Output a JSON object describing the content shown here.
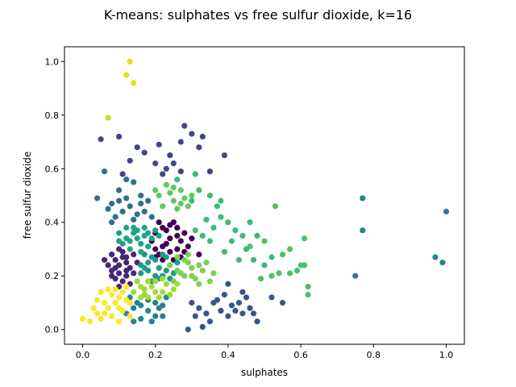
{
  "chart_data": {
    "type": "scatter",
    "title": "K-means: sulphates vs free sulfur dioxide, k=16",
    "xlabel": "sulphates",
    "ylabel": "free sulfur dioxide",
    "xlim": [
      -0.05,
      1.05
    ],
    "ylim": [
      -0.055,
      1.055
    ],
    "xticks": [
      0.0,
      0.2,
      0.4,
      0.6,
      0.8,
      1.0
    ],
    "yticks": [
      0.0,
      0.2,
      0.4,
      0.6,
      0.8,
      1.0
    ],
    "xtick_labels": [
      "0.0",
      "0.2",
      "0.4",
      "0.6",
      "0.8",
      "1.0"
    ],
    "ytick_labels": [
      "0.0",
      "0.2",
      "0.4",
      "0.6",
      "0.8",
      "1.0"
    ],
    "grid": false,
    "legend": "none",
    "clusters": [
      {
        "color": "#440154",
        "points": [
          [
            0.2,
            0.36
          ],
          [
            0.22,
            0.38
          ],
          [
            0.24,
            0.34
          ],
          [
            0.26,
            0.3
          ],
          [
            0.21,
            0.28
          ],
          [
            0.25,
            0.4
          ],
          [
            0.28,
            0.36
          ],
          [
            0.23,
            0.32
          ],
          [
            0.27,
            0.27
          ],
          [
            0.2,
            0.3
          ],
          [
            0.3,
            0.34
          ],
          [
            0.22,
            0.26
          ],
          [
            0.26,
            0.38
          ],
          [
            0.24,
            0.29
          ],
          [
            0.19,
            0.33
          ],
          [
            0.21,
            0.4
          ],
          [
            0.29,
            0.31
          ],
          [
            0.25,
            0.26
          ],
          [
            0.23,
            0.37
          ],
          [
            0.27,
            0.33
          ],
          [
            0.32,
            0.28
          ],
          [
            0.2,
            0.27
          ],
          [
            0.24,
            0.39
          ],
          [
            0.26,
            0.35
          ],
          [
            0.22,
            0.31
          ],
          [
            0.28,
            0.29
          ]
        ]
      },
      {
        "color": "#482677",
        "points": [
          [
            0.08,
            0.22
          ],
          [
            0.1,
            0.24
          ],
          [
            0.12,
            0.2
          ],
          [
            0.09,
            0.26
          ],
          [
            0.11,
            0.18
          ],
          [
            0.13,
            0.23
          ],
          [
            0.08,
            0.28
          ],
          [
            0.1,
            0.16
          ],
          [
            0.12,
            0.27
          ],
          [
            0.14,
            0.21
          ],
          [
            0.07,
            0.24
          ],
          [
            0.09,
            0.19
          ],
          [
            0.11,
            0.29
          ],
          [
            0.13,
            0.17
          ],
          [
            0.15,
            0.25
          ],
          [
            0.08,
            0.2
          ],
          [
            0.1,
            0.3
          ],
          [
            0.12,
            0.22
          ],
          [
            0.14,
            0.28
          ],
          [
            0.06,
            0.26
          ],
          [
            0.1,
            0.21
          ],
          [
            0.12,
            0.25
          ],
          [
            0.09,
            0.23
          ],
          [
            0.11,
            0.27
          ]
        ]
      },
      {
        "color": "#3f4788",
        "points": [
          [
            0.05,
            0.71
          ],
          [
            0.1,
            0.72
          ],
          [
            0.15,
            0.68
          ],
          [
            0.17,
            0.66
          ],
          [
            0.21,
            0.69
          ],
          [
            0.24,
            0.65
          ],
          [
            0.28,
            0.76
          ],
          [
            0.3,
            0.73
          ],
          [
            0.33,
            0.72
          ],
          [
            0.25,
            0.62
          ],
          [
            0.2,
            0.62
          ],
          [
            0.13,
            0.63
          ],
          [
            0.27,
            0.59
          ],
          [
            0.39,
            0.65
          ],
          [
            0.35,
            0.59
          ],
          [
            0.22,
            0.58
          ],
          [
            0.27,
            0.7
          ],
          [
            0.32,
            0.68
          ],
          [
            0.23,
            0.6
          ],
          [
            0.11,
            0.58
          ]
        ]
      },
      {
        "color": "#39558c",
        "points": [
          [
            0.3,
            0.1
          ],
          [
            0.32,
            0.08
          ],
          [
            0.34,
            0.06
          ],
          [
            0.36,
            0.1
          ],
          [
            0.38,
            0.07
          ],
          [
            0.4,
            0.05
          ],
          [
            0.42,
            0.07
          ],
          [
            0.44,
            0.06
          ],
          [
            0.46,
            0.08
          ],
          [
            0.35,
            0.03
          ],
          [
            0.33,
            0.01
          ],
          [
            0.37,
            0.11
          ],
          [
            0.39,
            0.13
          ],
          [
            0.41,
            0.09
          ],
          [
            0.45,
            0.12
          ],
          [
            0.47,
            0.06
          ],
          [
            0.31,
            0.05
          ],
          [
            0.43,
            0.1
          ],
          [
            0.48,
            0.03
          ],
          [
            0.52,
            0.12
          ],
          [
            0.55,
            0.1
          ],
          [
            0.29,
            0.0
          ],
          [
            0.4,
            0.17
          ],
          [
            0.44,
            0.14
          ]
        ]
      },
      {
        "color": "#2d708e",
        "points": [
          [
            0.06,
            0.59
          ],
          [
            0.04,
            0.49
          ],
          [
            0.08,
            0.47
          ],
          [
            0.1,
            0.52
          ],
          [
            0.12,
            0.49
          ],
          [
            0.14,
            0.55
          ],
          [
            0.16,
            0.5
          ],
          [
            0.18,
            0.48
          ],
          [
            0.11,
            0.44
          ],
          [
            0.13,
            0.46
          ],
          [
            0.09,
            0.42
          ],
          [
            0.15,
            0.43
          ],
          [
            0.07,
            0.45
          ],
          [
            0.12,
            0.56
          ],
          [
            0.17,
            0.44
          ],
          [
            0.14,
            0.41
          ],
          [
            0.1,
            0.48
          ],
          [
            0.16,
            0.47
          ],
          [
            0.08,
            0.4
          ],
          [
            0.19,
            0.42
          ]
        ]
      },
      {
        "color": "#25838e",
        "points": [
          [
            0.12,
            0.06
          ],
          [
            0.14,
            0.08
          ],
          [
            0.16,
            0.04
          ],
          [
            0.18,
            0.07
          ],
          [
            0.2,
            0.1
          ],
          [
            0.22,
            0.05
          ],
          [
            0.13,
            0.12
          ],
          [
            0.15,
            0.1
          ],
          [
            0.17,
            0.13
          ],
          [
            0.19,
            0.03
          ],
          [
            0.21,
            0.08
          ],
          [
            0.23,
            0.12
          ],
          [
            0.14,
            0.03
          ],
          [
            0.16,
            0.09
          ],
          [
            0.18,
            0.11
          ],
          [
            0.2,
            0.05
          ],
          [
            0.22,
            0.09
          ],
          [
            0.77,
            0.49
          ],
          [
            1.0,
            0.44
          ],
          [
            0.97,
            0.27
          ],
          [
            0.99,
            0.25
          ],
          [
            0.77,
            0.37
          ],
          [
            0.75,
            0.2
          ]
        ]
      },
      {
        "color": "#20a386",
        "points": [
          [
            0.1,
            0.36
          ],
          [
            0.12,
            0.34
          ],
          [
            0.14,
            0.38
          ],
          [
            0.16,
            0.32
          ],
          [
            0.18,
            0.36
          ],
          [
            0.13,
            0.3
          ],
          [
            0.15,
            0.34
          ],
          [
            0.17,
            0.38
          ],
          [
            0.11,
            0.32
          ],
          [
            0.19,
            0.34
          ],
          [
            0.14,
            0.36
          ],
          [
            0.16,
            0.29
          ],
          [
            0.12,
            0.38
          ],
          [
            0.18,
            0.31
          ],
          [
            0.2,
            0.37
          ],
          [
            0.13,
            0.33
          ],
          [
            0.15,
            0.37
          ],
          [
            0.17,
            0.35
          ],
          [
            0.1,
            0.33
          ],
          [
            0.21,
            0.35
          ]
        ]
      },
      {
        "color": "#1f9a8a",
        "points": [
          [
            0.16,
            0.24
          ],
          [
            0.18,
            0.22
          ],
          [
            0.2,
            0.26
          ],
          [
            0.22,
            0.2
          ],
          [
            0.24,
            0.24
          ],
          [
            0.17,
            0.28
          ],
          [
            0.19,
            0.18
          ],
          [
            0.21,
            0.23
          ],
          [
            0.23,
            0.27
          ],
          [
            0.25,
            0.21
          ],
          [
            0.18,
            0.25
          ],
          [
            0.2,
            0.2
          ],
          [
            0.22,
            0.28
          ],
          [
            0.24,
            0.19
          ],
          [
            0.16,
            0.21
          ],
          [
            0.26,
            0.25
          ],
          [
            0.19,
            0.27
          ],
          [
            0.21,
            0.19
          ],
          [
            0.23,
            0.22
          ],
          [
            0.17,
            0.23
          ]
        ]
      },
      {
        "color": "#3cbb75",
        "points": [
          [
            0.31,
            0.37
          ],
          [
            0.34,
            0.41
          ],
          [
            0.36,
            0.38
          ],
          [
            0.38,
            0.42
          ],
          [
            0.33,
            0.35
          ],
          [
            0.35,
            0.33
          ],
          [
            0.4,
            0.4
          ],
          [
            0.42,
            0.37
          ],
          [
            0.44,
            0.35
          ],
          [
            0.46,
            0.4
          ],
          [
            0.39,
            0.29
          ],
          [
            0.41,
            0.33
          ],
          [
            0.43,
            0.26
          ],
          [
            0.45,
            0.3
          ],
          [
            0.47,
            0.26
          ],
          [
            0.5,
            0.24
          ],
          [
            0.52,
            0.27
          ],
          [
            0.48,
            0.35
          ],
          [
            0.38,
            0.48
          ],
          [
            0.35,
            0.5
          ],
          [
            0.32,
            0.52
          ],
          [
            0.37,
            0.46
          ],
          [
            0.26,
            0.56
          ],
          [
            0.31,
            0.58
          ],
          [
            0.3,
            0.48
          ]
        ]
      },
      {
        "color": "#4ac16d",
        "points": [
          [
            0.53,
            0.46
          ],
          [
            0.57,
            0.3
          ],
          [
            0.6,
            0.24
          ],
          [
            0.61,
            0.34
          ],
          [
            0.59,
            0.22
          ],
          [
            0.61,
            0.24
          ],
          [
            0.57,
            0.21
          ],
          [
            0.54,
            0.21
          ],
          [
            0.62,
            0.16
          ],
          [
            0.62,
            0.13
          ],
          [
            0.55,
            0.28
          ],
          [
            0.5,
            0.33
          ],
          [
            0.46,
            0.31
          ],
          [
            0.49,
            0.19
          ],
          [
            0.52,
            0.2
          ]
        ]
      },
      {
        "color": "#5ec962",
        "points": [
          [
            0.21,
            0.5
          ],
          [
            0.23,
            0.54
          ],
          [
            0.25,
            0.48
          ],
          [
            0.27,
            0.52
          ],
          [
            0.29,
            0.46
          ],
          [
            0.22,
            0.46
          ],
          [
            0.24,
            0.51
          ],
          [
            0.26,
            0.45
          ],
          [
            0.28,
            0.49
          ],
          [
            0.2,
            0.52
          ],
          [
            0.3,
            0.5
          ],
          [
            0.25,
            0.53
          ],
          [
            0.27,
            0.47
          ]
        ]
      },
      {
        "color": "#7ad151",
        "points": [
          [
            0.24,
            0.24
          ],
          [
            0.26,
            0.22
          ],
          [
            0.28,
            0.26
          ],
          [
            0.3,
            0.2
          ],
          [
            0.32,
            0.24
          ],
          [
            0.25,
            0.18
          ],
          [
            0.27,
            0.21
          ],
          [
            0.29,
            0.25
          ],
          [
            0.31,
            0.19
          ],
          [
            0.33,
            0.22
          ],
          [
            0.35,
            0.18
          ],
          [
            0.26,
            0.27
          ],
          [
            0.28,
            0.2
          ],
          [
            0.3,
            0.23
          ],
          [
            0.34,
            0.25
          ],
          [
            0.36,
            0.21
          ],
          [
            0.32,
            0.17
          ],
          [
            0.29,
            0.28
          ]
        ]
      },
      {
        "color": "#a0da39",
        "points": [
          [
            0.14,
            0.14
          ],
          [
            0.16,
            0.16
          ],
          [
            0.18,
            0.12
          ],
          [
            0.2,
            0.18
          ],
          [
            0.22,
            0.14
          ],
          [
            0.15,
            0.18
          ],
          [
            0.17,
            0.13
          ],
          [
            0.19,
            0.16
          ],
          [
            0.21,
            0.12
          ],
          [
            0.23,
            0.17
          ],
          [
            0.25,
            0.15
          ],
          [
            0.16,
            0.12
          ],
          [
            0.18,
            0.18
          ],
          [
            0.2,
            0.14
          ],
          [
            0.22,
            0.19
          ],
          [
            0.24,
            0.13
          ],
          [
            0.26,
            0.17
          ],
          [
            0.17,
            0.15
          ]
        ]
      },
      {
        "color": "#c8e020",
        "points": [
          [
            0.07,
            0.79
          ]
        ]
      },
      {
        "color": "#dde318",
        "points": [
          [
            0.13,
            1.0
          ],
          [
            0.12,
            0.95
          ],
          [
            0.14,
            0.92
          ]
        ]
      },
      {
        "color": "#fde725",
        "points": [
          [
            0.0,
            0.04
          ],
          [
            0.02,
            0.03
          ],
          [
            0.04,
            0.06
          ],
          [
            0.06,
            0.1
          ],
          [
            0.08,
            0.05
          ],
          [
            0.1,
            0.12
          ],
          [
            0.05,
            0.14
          ],
          [
            0.07,
            0.08
          ],
          [
            0.09,
            0.15
          ],
          [
            0.11,
            0.07
          ],
          [
            0.13,
            0.1
          ],
          [
            0.03,
            0.08
          ],
          [
            0.05,
            0.04
          ],
          [
            0.08,
            0.13
          ],
          [
            0.1,
            0.03
          ],
          [
            0.12,
            0.16
          ],
          [
            0.06,
            0.06
          ],
          [
            0.09,
            0.1
          ],
          [
            0.11,
            0.14
          ],
          [
            0.04,
            0.11
          ],
          [
            0.07,
            0.15
          ],
          [
            0.13,
            0.05
          ],
          [
            0.1,
            0.08
          ],
          [
            0.12,
            0.11
          ]
        ]
      }
    ]
  }
}
